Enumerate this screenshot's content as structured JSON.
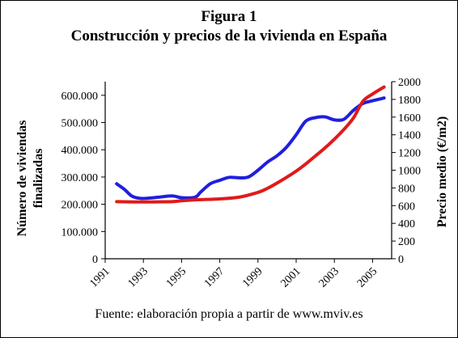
{
  "figure": {
    "title": "Figura 1",
    "subtitle": "Construcción y precios de la vivienda en España",
    "source": "Fuente: elaboración propia a partir de www.mviv.es"
  },
  "colors": {
    "construction_line": "#1f1fe0",
    "price_line": "#e01a1a",
    "axis": "#000000",
    "background": "#ffffff"
  },
  "chart_data": {
    "type": "line",
    "title": "Construcción y precios de la vivienda en España",
    "xlabel": "",
    "xlim": [
      1991,
      2006
    ],
    "x_ticks": [
      "1991",
      "1993",
      "1995",
      "1997",
      "1999",
      "2001",
      "2003",
      "2005"
    ],
    "y_left": {
      "label_lines": [
        "Número de viviendas",
        "finalizadas"
      ],
      "lim": [
        0,
        650000
      ],
      "ticks": [
        "0",
        "100.000",
        "200.000",
        "300.000",
        "400.000",
        "500.000",
        "600.000"
      ],
      "tick_values": [
        0,
        100000,
        200000,
        300000,
        400000,
        500000,
        600000
      ]
    },
    "y_right": {
      "label": "Precio medio (€/m2)",
      "lim": [
        0,
        2000
      ],
      "ticks": [
        "0",
        "200",
        "400",
        "600",
        "800",
        "1000",
        "1200",
        "1400",
        "1600",
        "1800",
        "2000"
      ],
      "tick_values": [
        0,
        200,
        400,
        600,
        800,
        1000,
        1200,
        1400,
        1600,
        1800,
        2000
      ]
    },
    "series": [
      {
        "axis": "left",
        "points": [
          [
            1991.6,
            275000
          ],
          [
            1992.0,
            255000
          ],
          [
            1992.4,
            230000
          ],
          [
            1992.8,
            222000
          ],
          [
            1993.2,
            222000
          ],
          [
            1993.8,
            226000
          ],
          [
            1994.5,
            231000
          ],
          [
            1995.0,
            224000
          ],
          [
            1995.7,
            226000
          ],
          [
            1996.0,
            245000
          ],
          [
            1996.5,
            275000
          ],
          [
            1997.0,
            288000
          ],
          [
            1997.5,
            299000
          ],
          [
            1998.0,
            297000
          ],
          [
            1998.5,
            300000
          ],
          [
            1999.0,
            325000
          ],
          [
            1999.5,
            355000
          ],
          [
            2000.0,
            378000
          ],
          [
            2000.5,
            410000
          ],
          [
            2001.0,
            455000
          ],
          [
            2001.5,
            505000
          ],
          [
            2002.0,
            518000
          ],
          [
            2002.5,
            521000
          ],
          [
            2003.0,
            510000
          ],
          [
            2003.5,
            512000
          ],
          [
            2004.0,
            545000
          ],
          [
            2004.5,
            570000
          ],
          [
            2005.0,
            580000
          ],
          [
            2005.6,
            590000
          ]
        ]
      },
      {
        "axis": "right",
        "points": [
          [
            1991.6,
            645
          ],
          [
            1992.5,
            642
          ],
          [
            1993.5,
            642
          ],
          [
            1994.5,
            645
          ],
          [
            1995.0,
            655
          ],
          [
            1995.5,
            662
          ],
          [
            1996.0,
            668
          ],
          [
            1997.0,
            676
          ],
          [
            1998.0,
            695
          ],
          [
            1999.0,
            750
          ],
          [
            1999.5,
            795
          ],
          [
            2000.0,
            855
          ],
          [
            2000.5,
            920
          ],
          [
            2001.0,
            990
          ],
          [
            2001.5,
            1070
          ],
          [
            2002.0,
            1160
          ],
          [
            2002.5,
            1250
          ],
          [
            2003.0,
            1350
          ],
          [
            2003.5,
            1460
          ],
          [
            2004.0,
            1590
          ],
          [
            2004.5,
            1780
          ],
          [
            2005.0,
            1860
          ],
          [
            2005.6,
            1940
          ]
        ]
      }
    ],
    "grid": false,
    "legend": "none"
  }
}
